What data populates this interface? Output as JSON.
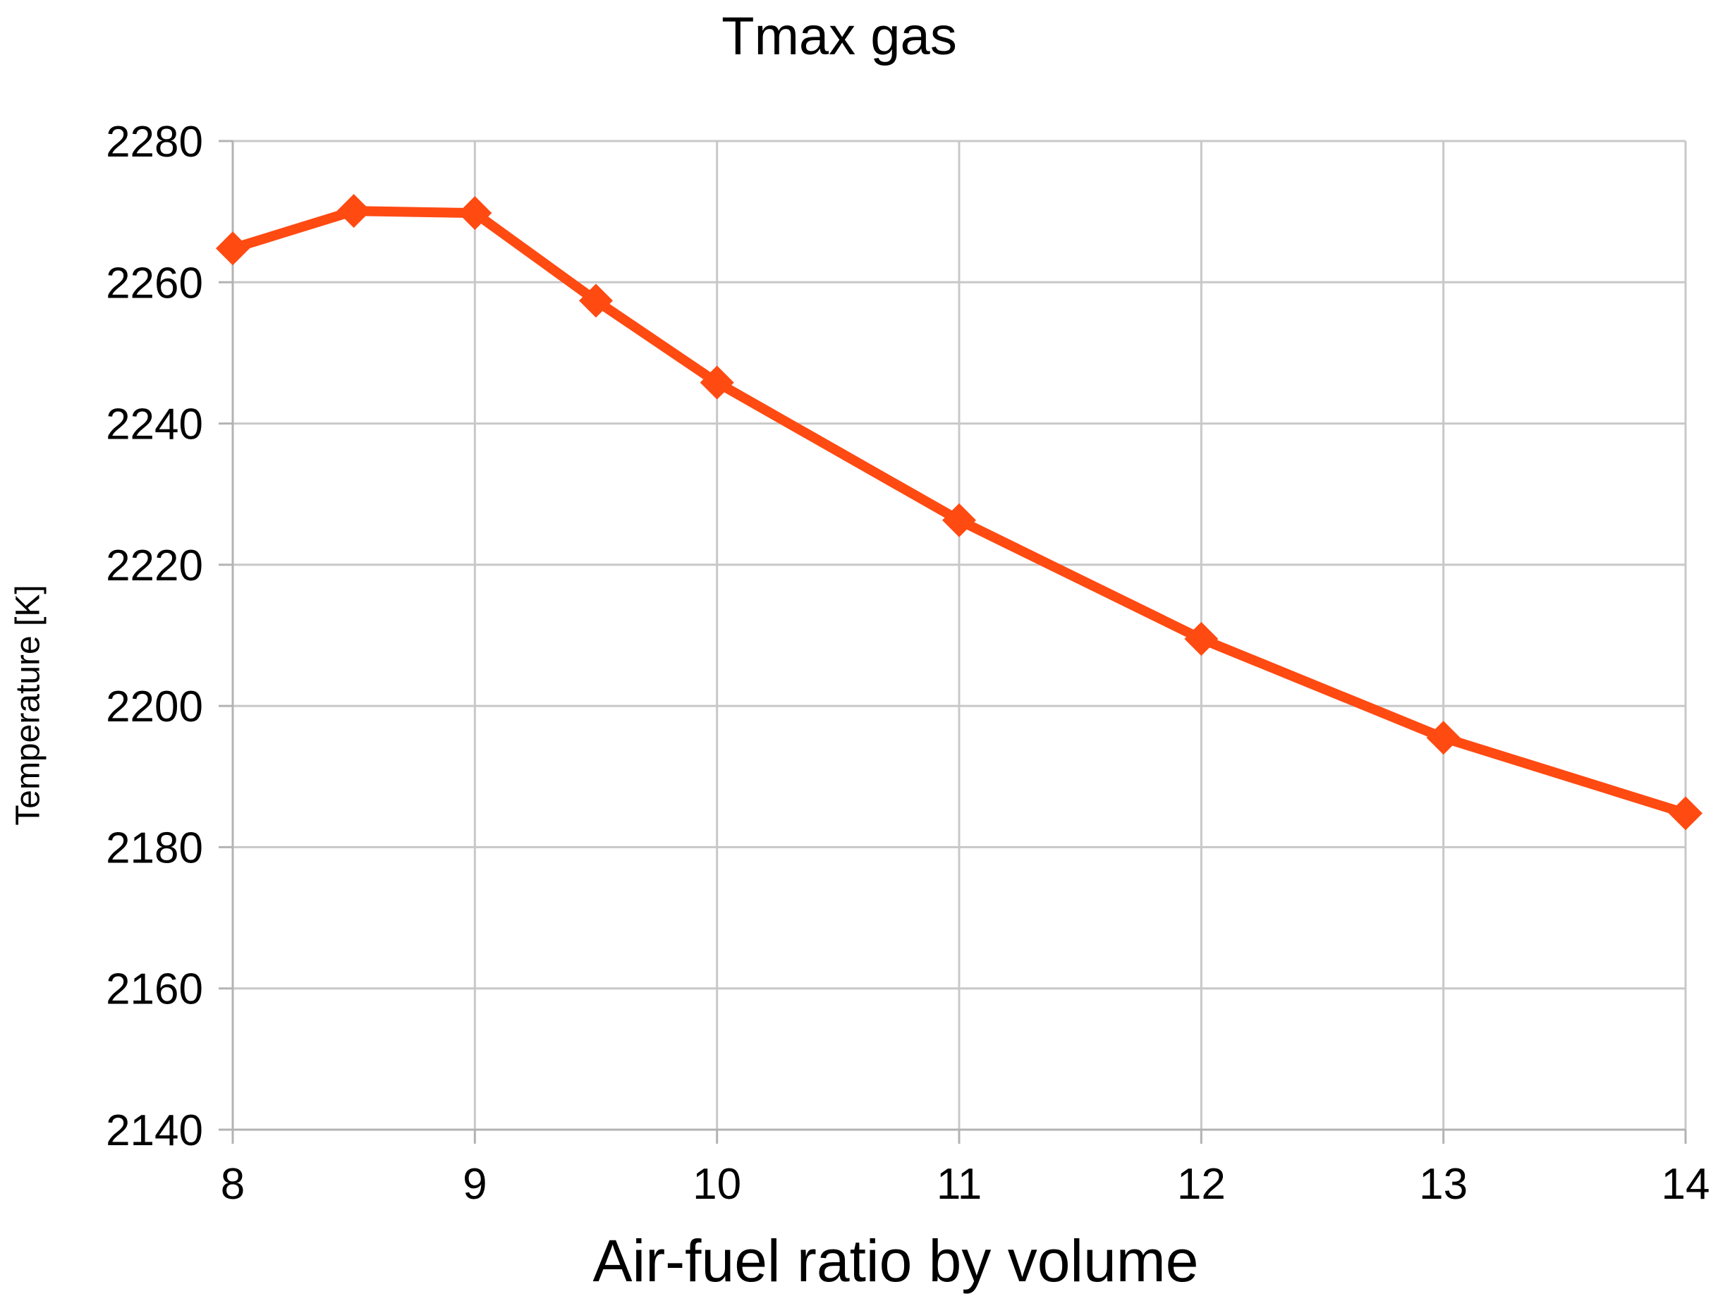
{
  "chart_data": {
    "type": "line",
    "title": "Tmax gas",
    "xlabel": "Air-fuel ratio by volume",
    "ylabel": "Temperature [K]",
    "xlim": [
      8,
      14
    ],
    "ylim": [
      2140,
      2280
    ],
    "x_ticks": [
      "8",
      "9",
      "10",
      "11",
      "12",
      "13",
      "14"
    ],
    "y_ticks": [
      "2140",
      "2160",
      "2180",
      "2200",
      "2220",
      "2240",
      "2260",
      "2280"
    ],
    "grid": true,
    "legend": "none",
    "series": [
      {
        "color": "#ff4a12",
        "marker": "diamond",
        "points": [
          {
            "x": 8,
            "y": 2264.8
          },
          {
            "x": 8.5,
            "y": 2270.1
          },
          {
            "x": 9,
            "y": 2269.8
          },
          {
            "x": 9.5,
            "y": 2257.4
          },
          {
            "x": 10,
            "y": 2245.8
          },
          {
            "x": 11,
            "y": 2226.3
          },
          {
            "x": 12,
            "y": 2209.5
          },
          {
            "x": 13,
            "y": 2195.5
          },
          {
            "x": 14,
            "y": 2184.8
          }
        ]
      }
    ]
  }
}
